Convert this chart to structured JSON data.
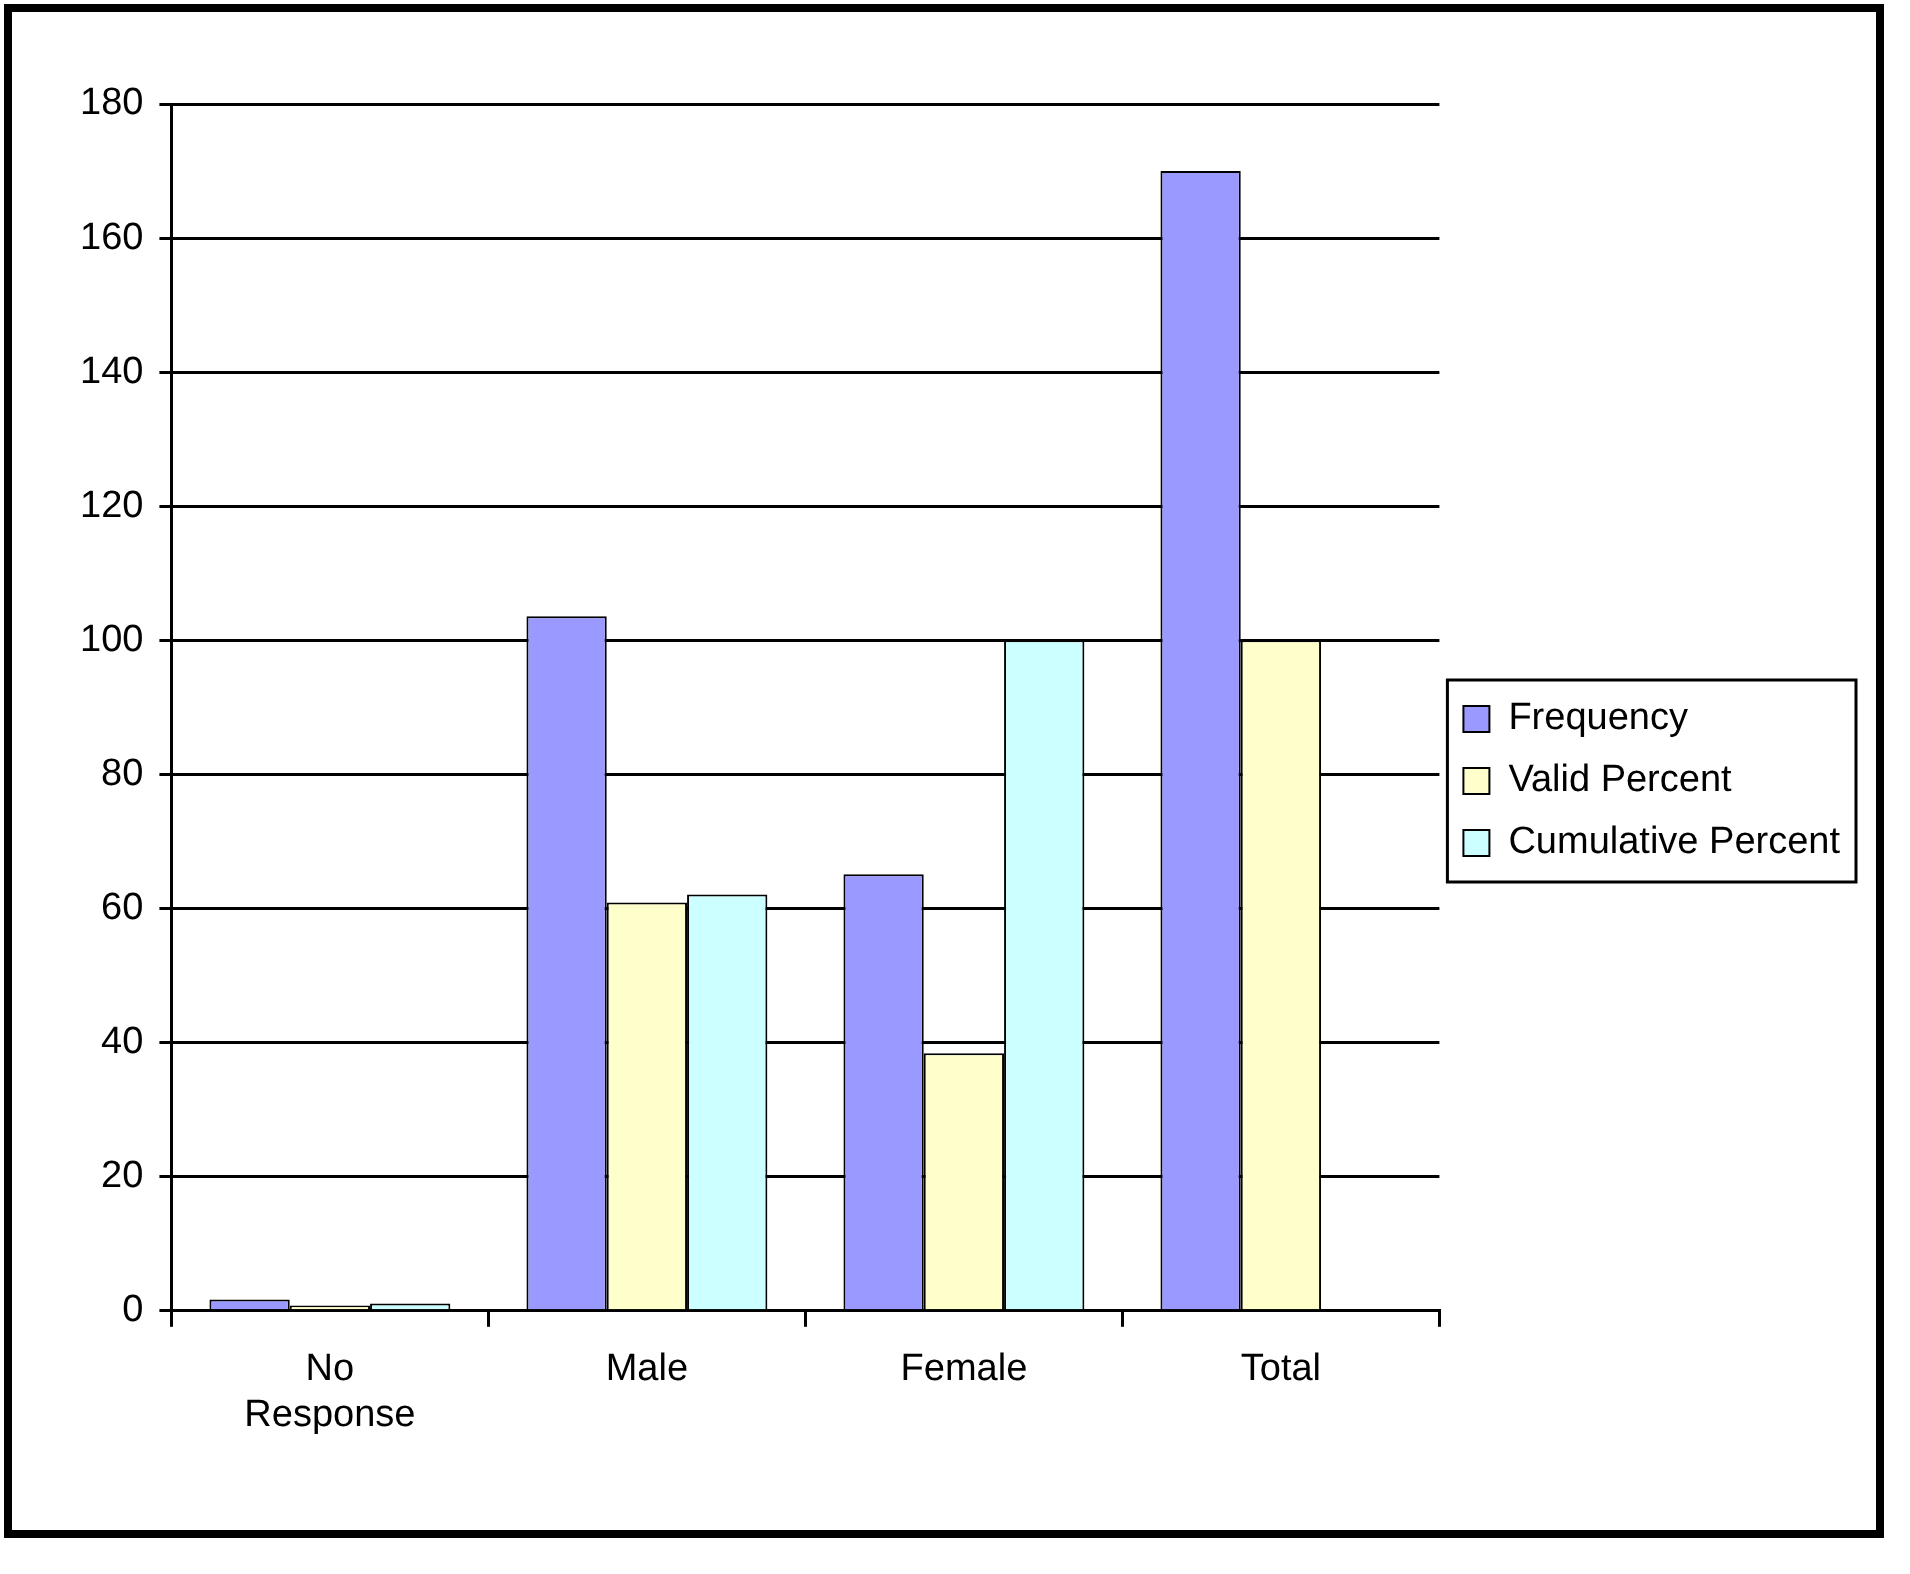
{
  "chart_data": {
    "type": "bar",
    "categories": [
      "No Response",
      "Male",
      "Female",
      "Total"
    ],
    "series": [
      {
        "name": "Frequency",
        "color": "#9999ff",
        "values": [
          1.7,
          103.6,
          65.1,
          170
        ]
      },
      {
        "name": "Valid Percent",
        "color": "#ffffcc",
        "values": [
          0.8,
          60.9,
          38.4,
          100
        ]
      },
      {
        "name": "Cumulative Percent",
        "color": "#ccffff",
        "values": [
          1.1,
          62.1,
          100,
          null
        ]
      }
    ],
    "ylim": [
      0,
      180
    ],
    "yticks": [
      0,
      20,
      40,
      60,
      80,
      100,
      120,
      140,
      160,
      180
    ],
    "grid": "y",
    "legend": "right"
  }
}
